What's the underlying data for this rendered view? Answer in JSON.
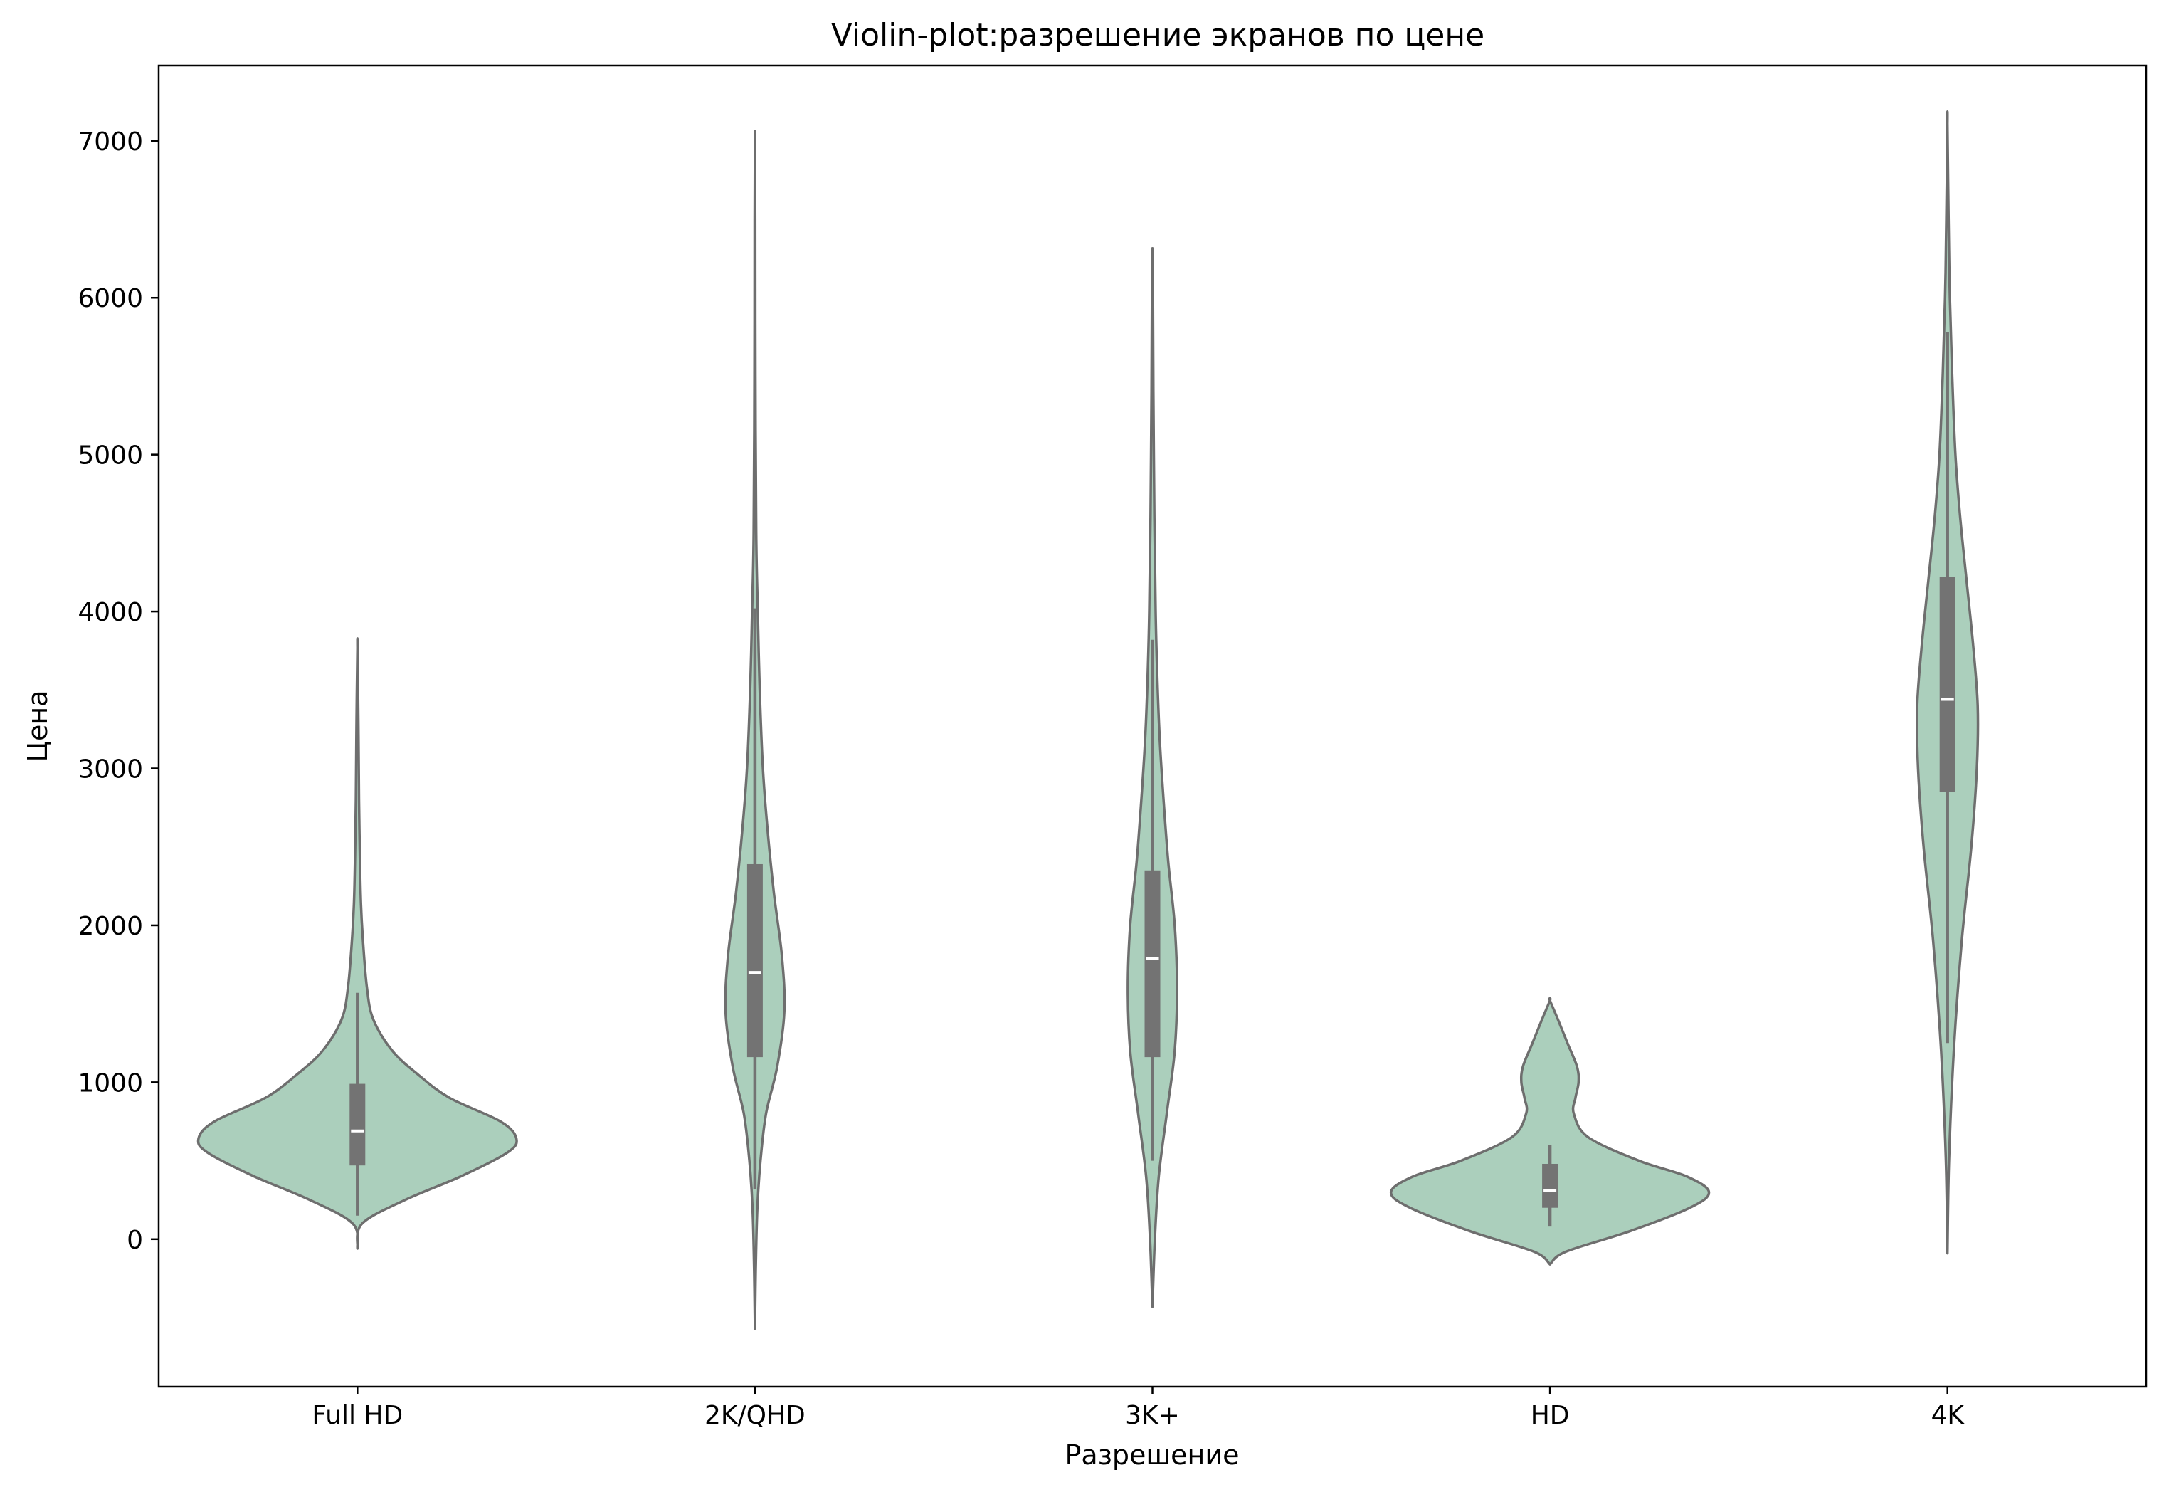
{
  "chart_data": {
    "type": "violin",
    "title": "Violin-plot:разрешение экранов по цене",
    "xlabel": "Разрешение",
    "ylabel": "Цена",
    "ylim": [
      -940,
      7480
    ],
    "yticks": [
      0,
      1000,
      2000,
      3000,
      4000,
      5000,
      6000,
      7000
    ],
    "grid": false,
    "colors": {
      "fill": "#abcfbc",
      "edge": "#6e6e6e",
      "box": "#737373",
      "median": "#ffffff"
    },
    "categories": [
      "Full HD",
      "2K/QHD",
      "3K+",
      "HD",
      "4K"
    ],
    "violins": [
      {
        "category": "Full HD",
        "q1": 470,
        "median": 690,
        "q3": 990,
        "whisker_low": 150,
        "whisker_high": 1570,
        "density": [
          [
            -60,
            0.0
          ],
          [
            100,
            0.03
          ],
          [
            250,
            0.3
          ],
          [
            400,
            0.65
          ],
          [
            550,
            0.94
          ],
          [
            640,
            1.0
          ],
          [
            750,
            0.9
          ],
          [
            900,
            0.58
          ],
          [
            1050,
            0.38
          ],
          [
            1200,
            0.22
          ],
          [
            1400,
            0.1
          ],
          [
            1600,
            0.06
          ],
          [
            1900,
            0.035
          ],
          [
            2200,
            0.02
          ],
          [
            2800,
            0.01
          ],
          [
            3300,
            0.006
          ],
          [
            3770,
            0.0
          ]
        ]
      },
      {
        "category": "2K/QHD",
        "q1": 1160,
        "median": 1700,
        "q3": 2390,
        "whisker_low": 320,
        "whisker_high": 4020,
        "density": [
          [
            -570,
            0.0
          ],
          [
            -200,
            0.005
          ],
          [
            200,
            0.015
          ],
          [
            500,
            0.035
          ],
          [
            800,
            0.07
          ],
          [
            1100,
            0.14
          ],
          [
            1450,
            0.185
          ],
          [
            1800,
            0.17
          ],
          [
            2200,
            0.12
          ],
          [
            2600,
            0.08
          ],
          [
            3000,
            0.05
          ],
          [
            3500,
            0.03
          ],
          [
            4000,
            0.018
          ],
          [
            4500,
            0.008
          ],
          [
            5500,
            0.003
          ],
          [
            6500,
            0.002
          ],
          [
            7000,
            0.0
          ]
        ]
      },
      {
        "category": "3K+",
        "q1": 1160,
        "median": 1790,
        "q3": 2350,
        "whisker_low": 500,
        "whisker_high": 3820,
        "density": [
          [
            -430,
            0.0
          ],
          [
            0,
            0.015
          ],
          [
            400,
            0.04
          ],
          [
            800,
            0.09
          ],
          [
            1200,
            0.14
          ],
          [
            1600,
            0.155
          ],
          [
            2000,
            0.14
          ],
          [
            2400,
            0.1
          ],
          [
            2800,
            0.07
          ],
          [
            3200,
            0.045
          ],
          [
            3600,
            0.03
          ],
          [
            4000,
            0.02
          ],
          [
            4600,
            0.012
          ],
          [
            5400,
            0.006
          ],
          [
            6000,
            0.003
          ],
          [
            6280,
            0.0
          ]
        ]
      },
      {
        "category": "HD",
        "q1": 200,
        "median": 310,
        "q3": 480,
        "whisker_low": 80,
        "whisker_high": 600,
        "density": [
          [
            -160,
            0.0
          ],
          [
            -80,
            0.1
          ],
          [
            50,
            0.5
          ],
          [
            200,
            0.88
          ],
          [
            300,
            1.0
          ],
          [
            400,
            0.86
          ],
          [
            500,
            0.56
          ],
          [
            650,
            0.24
          ],
          [
            800,
            0.15
          ],
          [
            900,
            0.16
          ],
          [
            1000,
            0.18
          ],
          [
            1100,
            0.17
          ],
          [
            1250,
            0.11
          ],
          [
            1400,
            0.05
          ],
          [
            1520,
            0.0
          ]
        ]
      },
      {
        "category": "4K",
        "q1": 2850,
        "median": 3440,
        "q3": 4220,
        "whisker_low": 1250,
        "whisker_high": 5780,
        "density": [
          [
            -90,
            0.0
          ],
          [
            500,
            0.01
          ],
          [
            1200,
            0.04
          ],
          [
            1900,
            0.09
          ],
          [
            2500,
            0.15
          ],
          [
            3000,
            0.185
          ],
          [
            3400,
            0.19
          ],
          [
            3800,
            0.16
          ],
          [
            4200,
            0.12
          ],
          [
            4600,
            0.08
          ],
          [
            5000,
            0.05
          ],
          [
            5500,
            0.03
          ],
          [
            6000,
            0.015
          ],
          [
            6500,
            0.007
          ],
          [
            7110,
            0.0
          ]
        ]
      }
    ]
  }
}
